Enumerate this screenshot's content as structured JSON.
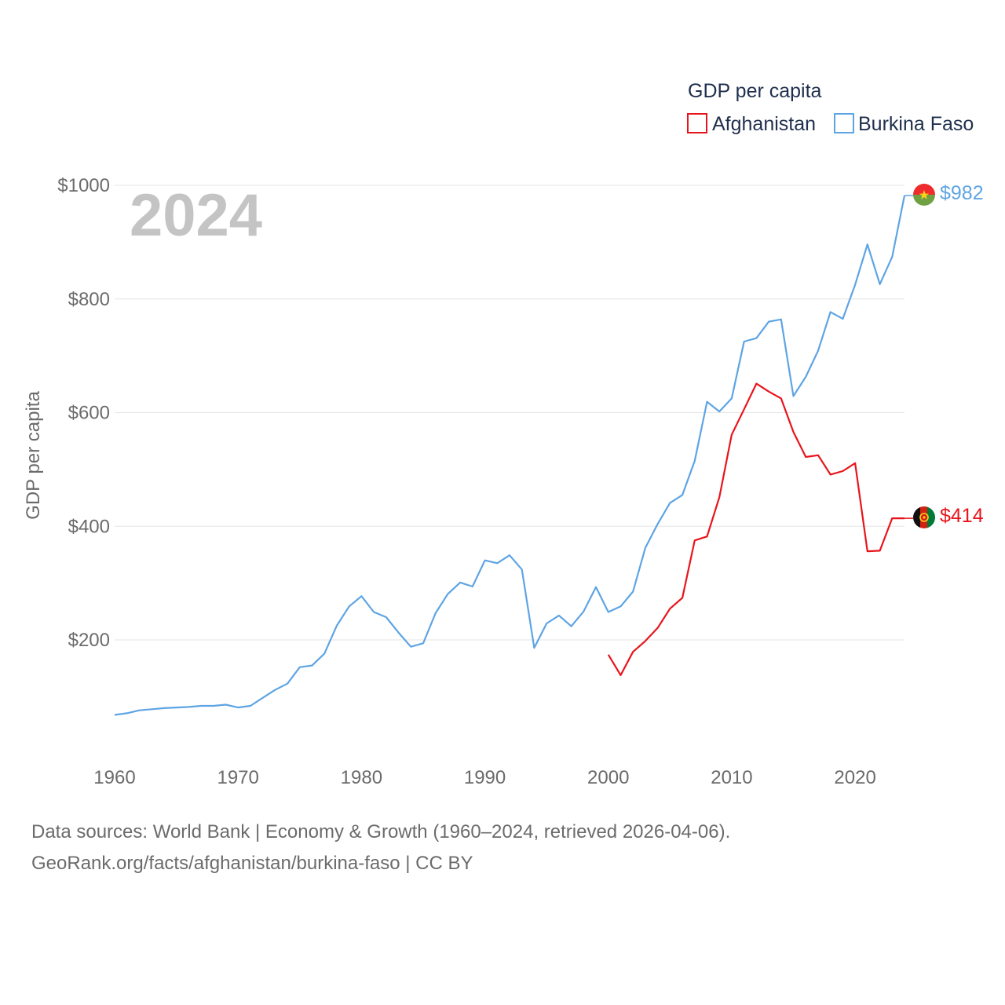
{
  "chart_data": {
    "type": "line",
    "title": "GDP per capita",
    "year_label": "2024",
    "ylabel": "GDP per capita",
    "xlabel": "",
    "xlim": [
      1960,
      2024
    ],
    "ylim": [
      0,
      1000
    ],
    "x_ticks": [
      1960,
      1970,
      1980,
      1990,
      2000,
      2010,
      2020
    ],
    "x_tick_labels": [
      "1960",
      "1970",
      "1980",
      "1990",
      "2000",
      "2010",
      "2020"
    ],
    "y_ticks": [
      200,
      400,
      600,
      800,
      1000
    ],
    "y_tick_labels": [
      "$200",
      "$400",
      "$600",
      "$800",
      "$1000"
    ],
    "legend": {
      "title": "GDP per capita",
      "position": "top-right"
    },
    "series": [
      {
        "name": "Afghanistan",
        "color": "#e8141b",
        "end_label": "$414",
        "x": [
          2000,
          2001,
          2002,
          2003,
          2004,
          2005,
          2006,
          2007,
          2008,
          2009,
          2010,
          2011,
          2012,
          2013,
          2014,
          2015,
          2016,
          2017,
          2018,
          2019,
          2020,
          2021,
          2022,
          2023,
          2024
        ],
        "values": [
          174,
          138,
          179,
          198,
          221,
          255,
          274,
          375,
          382,
          451,
          561,
          606,
          651,
          637,
          625,
          566,
          522,
          525,
          491,
          497,
          511,
          356,
          357,
          414,
          414
        ]
      },
      {
        "name": "Burkina Faso",
        "color": "#5ea4e4",
        "end_label": "$982",
        "x": [
          1960,
          1961,
          1962,
          1963,
          1964,
          1965,
          1966,
          1967,
          1968,
          1969,
          1970,
          1971,
          1972,
          1973,
          1974,
          1975,
          1976,
          1977,
          1978,
          1979,
          1980,
          1981,
          1982,
          1983,
          1984,
          1985,
          1986,
          1987,
          1988,
          1989,
          1990,
          1991,
          1992,
          1993,
          1994,
          1995,
          1996,
          1997,
          1998,
          1999,
          2000,
          2001,
          2002,
          2003,
          2004,
          2005,
          2006,
          2007,
          2008,
          2009,
          2010,
          2011,
          2012,
          2013,
          2014,
          2015,
          2016,
          2017,
          2018,
          2019,
          2020,
          2021,
          2022,
          2023,
          2024
        ],
        "values": [
          68,
          71,
          76,
          78,
          80,
          81,
          82,
          84,
          84,
          86,
          81,
          84,
          98,
          112,
          123,
          152,
          155,
          176,
          225,
          259,
          277,
          249,
          240,
          213,
          188,
          194,
          247,
          281,
          301,
          294,
          340,
          335,
          349,
          324,
          186,
          229,
          243,
          224,
          250,
          293,
          249,
          259,
          285,
          362,
          404,
          441,
          455,
          515,
          619,
          602,
          625,
          725,
          731,
          760,
          764,
          629,
          663,
          709,
          777,
          765,
          825,
          896,
          826,
          874,
          982
        ]
      }
    ]
  },
  "footer": {
    "line1": "Data sources: World Bank | Economy & Growth (1960–2024, retrieved 2026-04-06).",
    "line2": "GeoRank.org/facts/afghanistan/burkina-faso | CC BY"
  }
}
